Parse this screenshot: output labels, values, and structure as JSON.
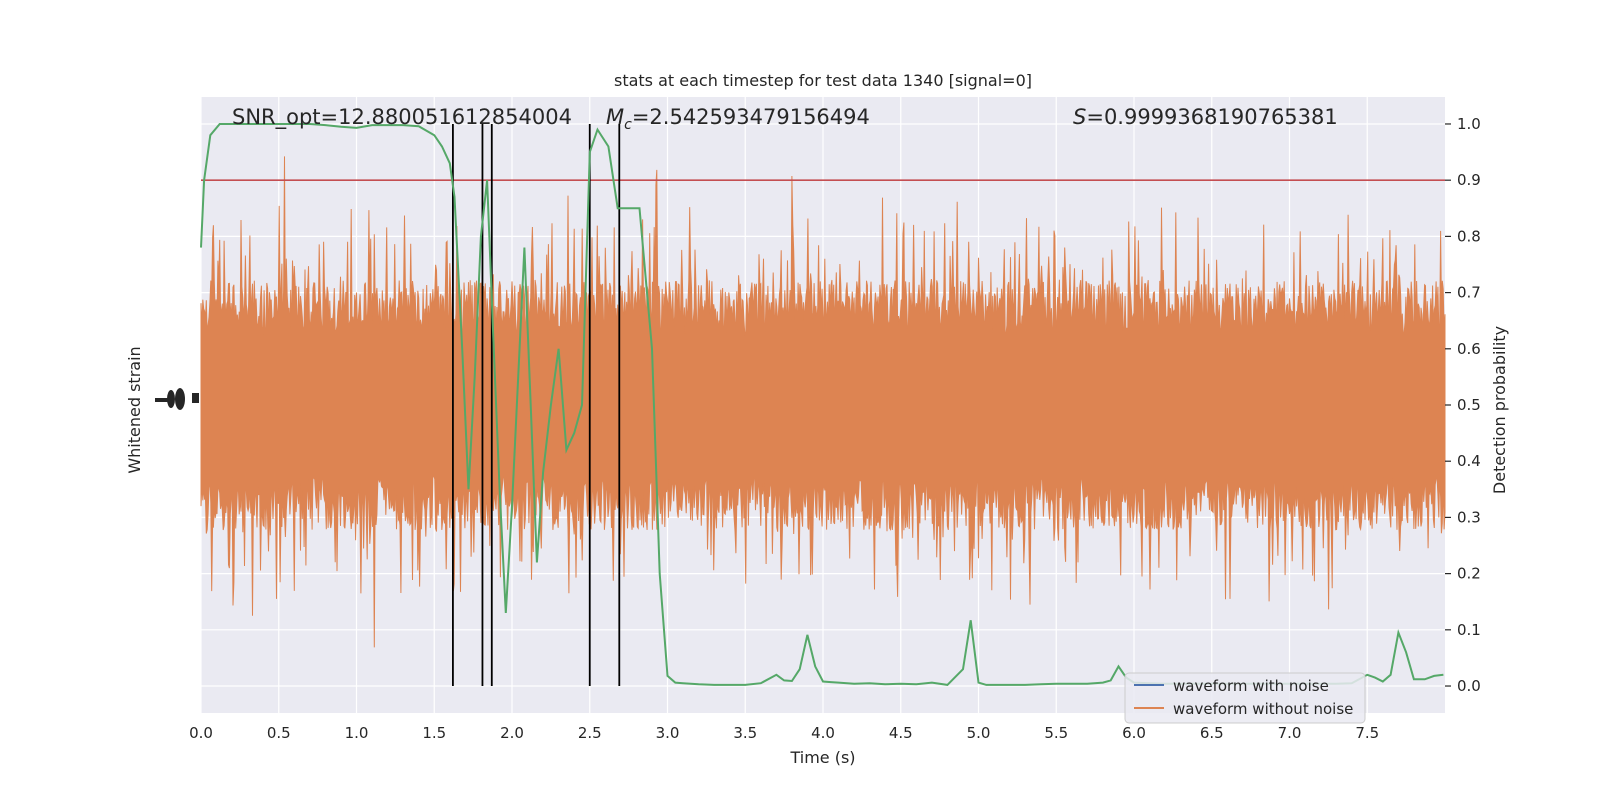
{
  "chart_data": {
    "type": "line",
    "title": "stats at each timestep for test data 1340 [signal=0]",
    "xlabel": "Time (s)",
    "ylabel_left": "Whitened strain",
    "ylabel_right": "Detection probability",
    "xlim": [
      0,
      8
    ],
    "ylim_right": [
      -0.048,
      1.048
    ],
    "x_ticks": [
      "0.0",
      "0.5",
      "1.0",
      "1.5",
      "2.0",
      "2.5",
      "3.0",
      "3.5",
      "4.0",
      "4.5",
      "5.0",
      "5.5",
      "6.0",
      "6.5",
      "7.0",
      "7.5"
    ],
    "y_ticks_right": [
      "0.0",
      "0.1",
      "0.2",
      "0.3",
      "0.4",
      "0.5",
      "0.6",
      "0.7",
      "0.8",
      "0.9",
      "1.0"
    ],
    "annotations": {
      "snr": "SNR_opt=12.880051612854004",
      "mc_symbol": "M",
      "mc_sub": "c",
      "mc_value": "=2.542593479156494",
      "s_symbol": "S",
      "s_value": "=0.9999368190765381"
    },
    "threshold": 0.9,
    "event_lines_x": [
      1.62,
      1.81,
      1.87,
      2.5,
      2.69
    ],
    "series": [
      {
        "name": "waveform with noise",
        "color": "#4c72b0"
      },
      {
        "name": "waveform without noise",
        "color": "#dd8452"
      }
    ],
    "probability": {
      "color": "#55a868",
      "x": [
        0.0,
        0.02,
        0.06,
        0.12,
        0.2,
        0.3,
        0.4,
        0.5,
        0.6,
        0.7,
        0.8,
        0.9,
        1.0,
        1.1,
        1.2,
        1.3,
        1.4,
        1.5,
        1.55,
        1.6,
        1.63,
        1.68,
        1.72,
        1.76,
        1.8,
        1.84,
        1.88,
        1.92,
        1.96,
        2.0,
        2.04,
        2.08,
        2.12,
        2.16,
        2.2,
        2.25,
        2.3,
        2.35,
        2.4,
        2.45,
        2.5,
        2.55,
        2.62,
        2.68,
        2.72,
        2.77,
        2.82,
        2.9,
        2.95,
        3.0,
        3.05,
        3.1,
        3.2,
        3.3,
        3.4,
        3.5,
        3.6,
        3.7,
        3.75,
        3.8,
        3.85,
        3.9,
        3.95,
        4.0,
        4.05,
        4.1,
        4.2,
        4.3,
        4.4,
        4.5,
        4.6,
        4.7,
        4.8,
        4.9,
        4.95,
        5.0,
        5.05,
        5.1,
        5.2,
        5.3,
        5.4,
        5.5,
        5.6,
        5.7,
        5.8,
        5.85,
        5.9,
        5.95,
        6.0,
        6.1,
        6.2,
        6.3,
        6.4,
        6.5,
        6.6,
        6.7,
        6.8,
        6.9,
        7.0,
        7.1,
        7.2,
        7.3,
        7.4,
        7.5,
        7.55,
        7.6,
        7.65,
        7.7,
        7.75,
        7.8,
        7.87,
        7.93,
        7.99
      ],
      "y": [
        0.78,
        0.9,
        0.98,
        1.0,
        1.0,
        1.0,
        1.0,
        1.0,
        1.0,
        1.0,
        0.998,
        0.995,
        0.993,
        0.998,
        0.998,
        0.998,
        0.996,
        0.98,
        0.96,
        0.93,
        0.87,
        0.6,
        0.35,
        0.55,
        0.8,
        0.9,
        0.62,
        0.35,
        0.13,
        0.32,
        0.55,
        0.78,
        0.5,
        0.22,
        0.38,
        0.5,
        0.6,
        0.42,
        0.45,
        0.5,
        0.95,
        0.99,
        0.96,
        0.85,
        0.85,
        0.85,
        0.85,
        0.6,
        0.2,
        0.018,
        0.006,
        0.005,
        0.003,
        0.002,
        0.002,
        0.002,
        0.005,
        0.02,
        0.01,
        0.009,
        0.03,
        0.091,
        0.035,
        0.008,
        0.007,
        0.006,
        0.004,
        0.005,
        0.003,
        0.004,
        0.003,
        0.006,
        0.002,
        0.03,
        0.117,
        0.006,
        0.002,
        0.002,
        0.002,
        0.002,
        0.003,
        0.004,
        0.004,
        0.004,
        0.006,
        0.01,
        0.035,
        0.015,
        0.006,
        0.005,
        0.004,
        0.004,
        0.004,
        0.004,
        0.004,
        0.004,
        0.004,
        0.004,
        0.004,
        0.004,
        0.004,
        0.004,
        0.005,
        0.02,
        0.015,
        0.008,
        0.02,
        0.095,
        0.06,
        0.012,
        0.012,
        0.018,
        0.02
      ]
    },
    "legend_position": "lower-right",
    "grid": true,
    "colors": {
      "background": "#eaeaf2",
      "grid": "#ffffff",
      "threshold": "#c44e52",
      "event_line": "#000000",
      "strain": "#dd8452",
      "probability": "#55a868"
    }
  }
}
